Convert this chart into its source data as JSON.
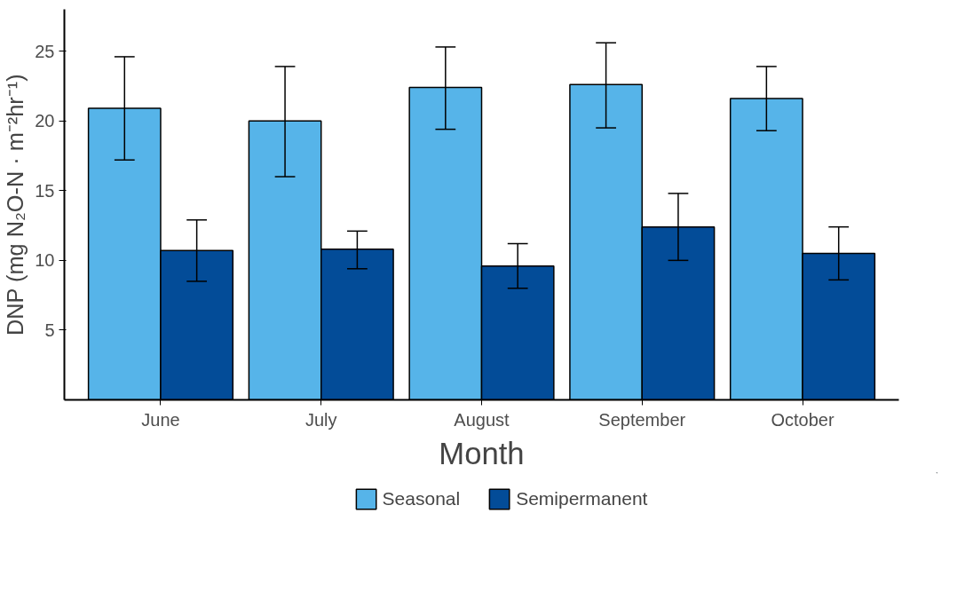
{
  "chart_data": {
    "type": "bar",
    "xlabel": "Month",
    "ylabel": "DNP (mg N₂O-N · m⁻²hr⁻¹)",
    "categories": [
      "June",
      "July",
      "August",
      "September",
      "October"
    ],
    "series": [
      {
        "name": "Seasonal",
        "color": "#56b4e9",
        "values": [
          20.9,
          20.0,
          22.4,
          22.6,
          21.6
        ],
        "errors": [
          [
            17.2,
            24.6
          ],
          [
            16.0,
            23.9
          ],
          [
            19.4,
            25.3
          ],
          [
            19.5,
            25.6
          ],
          [
            19.3,
            23.9
          ]
        ]
      },
      {
        "name": "Semipermanent",
        "color": "#034c98",
        "values": [
          10.7,
          10.8,
          9.6,
          12.4,
          10.5
        ],
        "errors": [
          [
            8.5,
            12.9
          ],
          [
            9.4,
            12.1
          ],
          [
            8.0,
            11.2
          ],
          [
            10.0,
            14.8
          ],
          [
            8.6,
            12.4
          ]
        ]
      }
    ],
    "ylim": [
      0,
      28
    ],
    "yticks": [
      5,
      10,
      15,
      20,
      25
    ],
    "grid": false,
    "legend": "bottom"
  }
}
